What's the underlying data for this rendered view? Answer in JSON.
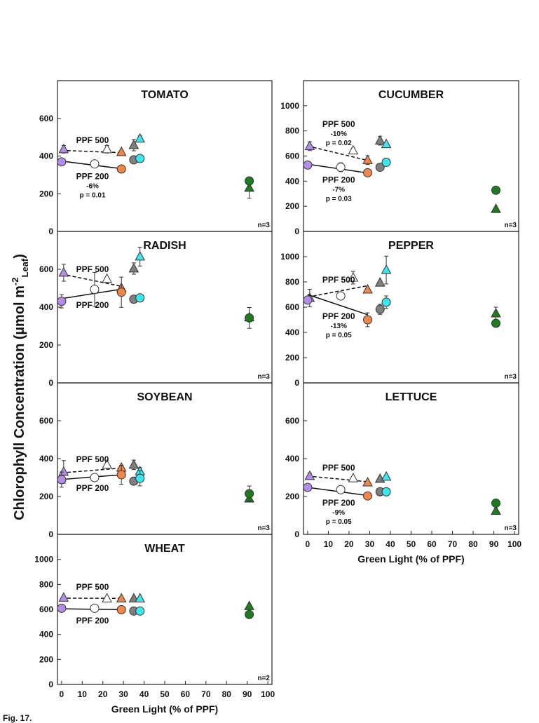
{
  "figure": {
    "ylabel": {
      "text": "Chlorophyll Concentration (µmol m",
      "sup": "-2",
      "sub": "Leaf",
      "end": ")"
    },
    "caption": "Fig. 17."
  },
  "chart_data": [
    {
      "type": "scatter",
      "title": "TOMATO",
      "note": "n=3",
      "xlim": [
        -2,
        102
      ],
      "ylim": [
        0,
        800
      ],
      "yticks": [
        0,
        200,
        400,
        600
      ],
      "series": [
        {
          "name": "PPF 500",
          "marker": "triangle",
          "line": "dashed",
          "x": [
            1,
            22,
            29,
            35,
            38,
            91
          ],
          "values": [
            436,
            436,
            421,
            458,
            492,
            231
          ],
          "errors": [
            20,
            20,
            null,
            30,
            15,
            55
          ],
          "colors": [
            "#b48ee6",
            "#ffffff",
            "#f0864a",
            "#7f7f7f",
            "#3ee6ef",
            "#1e7b1e"
          ],
          "fit_x": [
            0,
            29
          ],
          "fit_values": [
            430,
            418
          ]
        },
        {
          "name": "PPF 200",
          "marker": "circle",
          "line": "solid",
          "x": [
            0,
            16,
            29,
            35,
            38,
            91
          ],
          "values": [
            369,
            358,
            331,
            380,
            387,
            268
          ],
          "errors": [
            null,
            null,
            null,
            null,
            null,
            15
          ],
          "colors": [
            "#b48ee6",
            "#ffffff",
            "#f0864a",
            "#7f7f7f",
            "#3ee6ef",
            "#1e7b1e"
          ],
          "fit_x": [
            0,
            29
          ],
          "fit_values": [
            373,
            333
          ],
          "change": "-6%",
          "p": "p = 0.01"
        }
      ]
    },
    {
      "type": "scatter",
      "title": "CUCUMBER",
      "note": "n=3",
      "xlim": [
        -2,
        102
      ],
      "ylim": [
        0,
        1200
      ],
      "yticks": [
        0,
        200,
        400,
        600,
        800,
        1000
      ],
      "series": [
        {
          "name": "PPF 500",
          "marker": "triangle",
          "line": "dashed",
          "x": [
            1,
            22,
            29,
            35,
            38,
            91
          ],
          "values": [
            678,
            644,
            567,
            722,
            694,
            178
          ],
          "errors": [
            35,
            20,
            35,
            35,
            null,
            null
          ],
          "colors": [
            "#b48ee6",
            "#ffffff",
            "#f0864a",
            "#7f7f7f",
            "#3ee6ef",
            "#1e7b1e"
          ],
          "fit_x": [
            0,
            29
          ],
          "fit_values": [
            680,
            565
          ],
          "change": "-10%",
          "p": "p = 0.02"
        },
        {
          "name": "PPF 200",
          "marker": "circle",
          "line": "solid",
          "x": [
            0,
            16,
            29,
            35,
            38,
            91
          ],
          "values": [
            528,
            511,
            467,
            511,
            550,
            328
          ],
          "errors": [
            null,
            35,
            null,
            null,
            30,
            null
          ],
          "colors": [
            "#b48ee6",
            "#ffffff",
            "#f0864a",
            "#7f7f7f",
            "#3ee6ef",
            "#1e7b1e"
          ],
          "fit_x": [
            0,
            29
          ],
          "fit_values": [
            535,
            465
          ],
          "change": "-7%",
          "p": "p = 0.03"
        }
      ]
    },
    {
      "type": "scatter",
      "title": "RADISH",
      "note": "n=3",
      "xlim": [
        -2,
        102
      ],
      "ylim": [
        0,
        800
      ],
      "yticks": [
        0,
        200,
        400,
        600
      ],
      "series": [
        {
          "name": "PPF 500",
          "marker": "triangle",
          "line": "dashed",
          "x": [
            1,
            22,
            29,
            35,
            38,
            91
          ],
          "values": [
            582,
            549,
            501,
            604,
            667,
            346
          ],
          "errors": [
            45,
            null,
            null,
            30,
            50,
            null
          ],
          "colors": [
            "#b48ee6",
            "#ffffff",
            "#f0864a",
            "#7f7f7f",
            "#3ee6ef",
            "#1e7b1e"
          ],
          "fit_x": [
            0,
            29
          ],
          "fit_values": [
            575,
            510
          ]
        },
        {
          "name": "PPF 200",
          "marker": "circle",
          "line": "solid",
          "x": [
            0,
            16,
            29,
            35,
            38,
            91
          ],
          "values": [
            431,
            494,
            479,
            442,
            449,
            343
          ],
          "errors": [
            35,
            90,
            80,
            null,
            null,
            55
          ],
          "colors": [
            "#b48ee6",
            "#ffffff",
            "#f0864a",
            "#7f7f7f",
            "#3ee6ef",
            "#1e7b1e"
          ],
          "fit_x": [
            0,
            29
          ],
          "fit_values": [
            445,
            495
          ]
        }
      ]
    },
    {
      "type": "scatter",
      "title": "PEPPER",
      "note": "n=3",
      "xlim": [
        -2,
        102
      ],
      "ylim": [
        0,
        1200
      ],
      "yticks": [
        0,
        200,
        400,
        600,
        800,
        1000
      ],
      "series": [
        {
          "name": "PPF 500",
          "marker": "triangle",
          "line": "dashed",
          "x": [
            1,
            22,
            29,
            35,
            38,
            91
          ],
          "values": [
            672,
            833,
            739,
            794,
            894,
            550
          ],
          "errors": [
            70,
            50,
            null,
            null,
            110,
            50
          ],
          "colors": [
            "#b48ee6",
            "#ffffff",
            "#f0864a",
            "#7f7f7f",
            "#3ee6ef",
            "#1e7b1e"
          ],
          "fit_x": [
            0,
            29
          ],
          "fit_values": [
            680,
            770
          ]
        },
        {
          "name": "PPF 200",
          "marker": "circle",
          "line": "solid",
          "x": [
            0,
            16,
            29,
            35,
            38,
            91
          ],
          "values": [
            656,
            689,
            500,
            583,
            639,
            472
          ],
          "errors": [
            null,
            30,
            55,
            40,
            50,
            null
          ],
          "colors": [
            "#b48ee6",
            "#ffffff",
            "#f0864a",
            "#7f7f7f",
            "#3ee6ef",
            "#1e7b1e"
          ],
          "fit_x": [
            0,
            29
          ],
          "fit_values": [
            700,
            540
          ],
          "change": "-13%",
          "p": "p = 0.05"
        }
      ]
    },
    {
      "type": "scatter",
      "title": "SOYBEAN",
      "note": "n=3",
      "xlim": [
        -2,
        102
      ],
      "ylim": [
        0,
        800
      ],
      "yticks": [
        0,
        200,
        400,
        600
      ],
      "series": [
        {
          "name": "PPF 500",
          "marker": "triangle",
          "line": "dashed",
          "x": [
            1,
            22,
            29,
            35,
            38,
            91
          ],
          "values": [
            330,
            367,
            352,
            367,
            333,
            189
          ],
          "errors": [
            60,
            null,
            null,
            25,
            20,
            null
          ],
          "colors": [
            "#b48ee6",
            "#ffffff",
            "#f0864a",
            "#7f7f7f",
            "#3ee6ef",
            "#1e7b1e"
          ],
          "fit_x": [
            0,
            29
          ],
          "fit_values": [
            325,
            350
          ]
        },
        {
          "name": "PPF 200",
          "marker": "circle",
          "line": "solid",
          "x": [
            0,
            16,
            29,
            35,
            38,
            91
          ],
          "values": [
            289,
            300,
            315,
            281,
            296,
            215
          ],
          "errors": [
            40,
            null,
            50,
            20,
            40,
            40
          ],
          "colors": [
            "#b48ee6",
            "#ffffff",
            "#f0864a",
            "#7f7f7f",
            "#3ee6ef",
            "#1e7b1e"
          ],
          "fit_x": [
            0,
            29
          ],
          "fit_values": [
            290,
            315
          ]
        }
      ]
    },
    {
      "type": "scatter",
      "title": "LETTUCE",
      "note": "n=3",
      "xlim": [
        -2,
        102
      ],
      "ylim": [
        0,
        800
      ],
      "yticks": [
        0,
        200,
        400,
        600
      ],
      "xticks": [
        0,
        10,
        20,
        30,
        40,
        50,
        60,
        70,
        80,
        90,
        100
      ],
      "xlabel": "Green Light (% of PPF)",
      "series": [
        {
          "name": "PPF 500",
          "marker": "triangle",
          "line": "dashed",
          "x": [
            1,
            22,
            29,
            35,
            38,
            91
          ],
          "values": [
            308,
            296,
            274,
            293,
            304,
            124
          ],
          "errors": [
            15,
            null,
            null,
            null,
            null,
            null
          ],
          "colors": [
            "#b48ee6",
            "#ffffff",
            "#f0864a",
            "#7f7f7f",
            "#3ee6ef",
            "#1e7b1e"
          ],
          "fit_x": [
            0,
            29
          ],
          "fit_values": [
            308,
            278
          ]
        },
        {
          "name": "PPF 200",
          "marker": "circle",
          "line": "solid",
          "x": [
            0,
            16,
            29,
            35,
            38,
            91
          ],
          "values": [
            248,
            236,
            203,
            225,
            225,
            165
          ],
          "colors": [
            "#b48ee6",
            "#ffffff",
            "#f0864a",
            "#7f7f7f",
            "#3ee6ef",
            "#1e7b1e"
          ],
          "fit_x": [
            0,
            29
          ],
          "fit_values": [
            248,
            205
          ],
          "change": "-9%",
          "p": "p = 0.05"
        }
      ]
    },
    {
      "type": "scatter",
      "title": "WHEAT",
      "note": "n=2",
      "xlim": [
        -2,
        102
      ],
      "ylim": [
        0,
        1200
      ],
      "yticks": [
        0,
        200,
        400,
        600,
        800,
        1000
      ],
      "xticks": [
        0,
        10,
        20,
        30,
        40,
        50,
        60,
        70,
        80,
        90,
        100
      ],
      "xlabel": "Green Light (% of PPF)",
      "series": [
        {
          "name": "PPF 500",
          "marker": "triangle",
          "line": "dashed",
          "x": [
            1,
            22,
            29,
            35,
            38,
            91
          ],
          "values": [
            693,
            687,
            687,
            687,
            687,
            626
          ],
          "colors": [
            "#b48ee6",
            "#ffffff",
            "#f0864a",
            "#7f7f7f",
            "#3ee6ef",
            "#1e7b1e"
          ],
          "fit_x": [
            0,
            29
          ],
          "fit_values": [
            690,
            688
          ]
        },
        {
          "name": "PPF 200",
          "marker": "circle",
          "line": "solid",
          "x": [
            0,
            16,
            29,
            35,
            38,
            91
          ],
          "values": [
            609,
            609,
            598,
            587,
            587,
            559
          ],
          "colors": [
            "#b48ee6",
            "#ffffff",
            "#f0864a",
            "#7f7f7f",
            "#3ee6ef",
            "#1e7b1e"
          ],
          "fit_x": [
            0,
            29
          ],
          "fit_values": [
            605,
            598
          ]
        }
      ]
    }
  ]
}
